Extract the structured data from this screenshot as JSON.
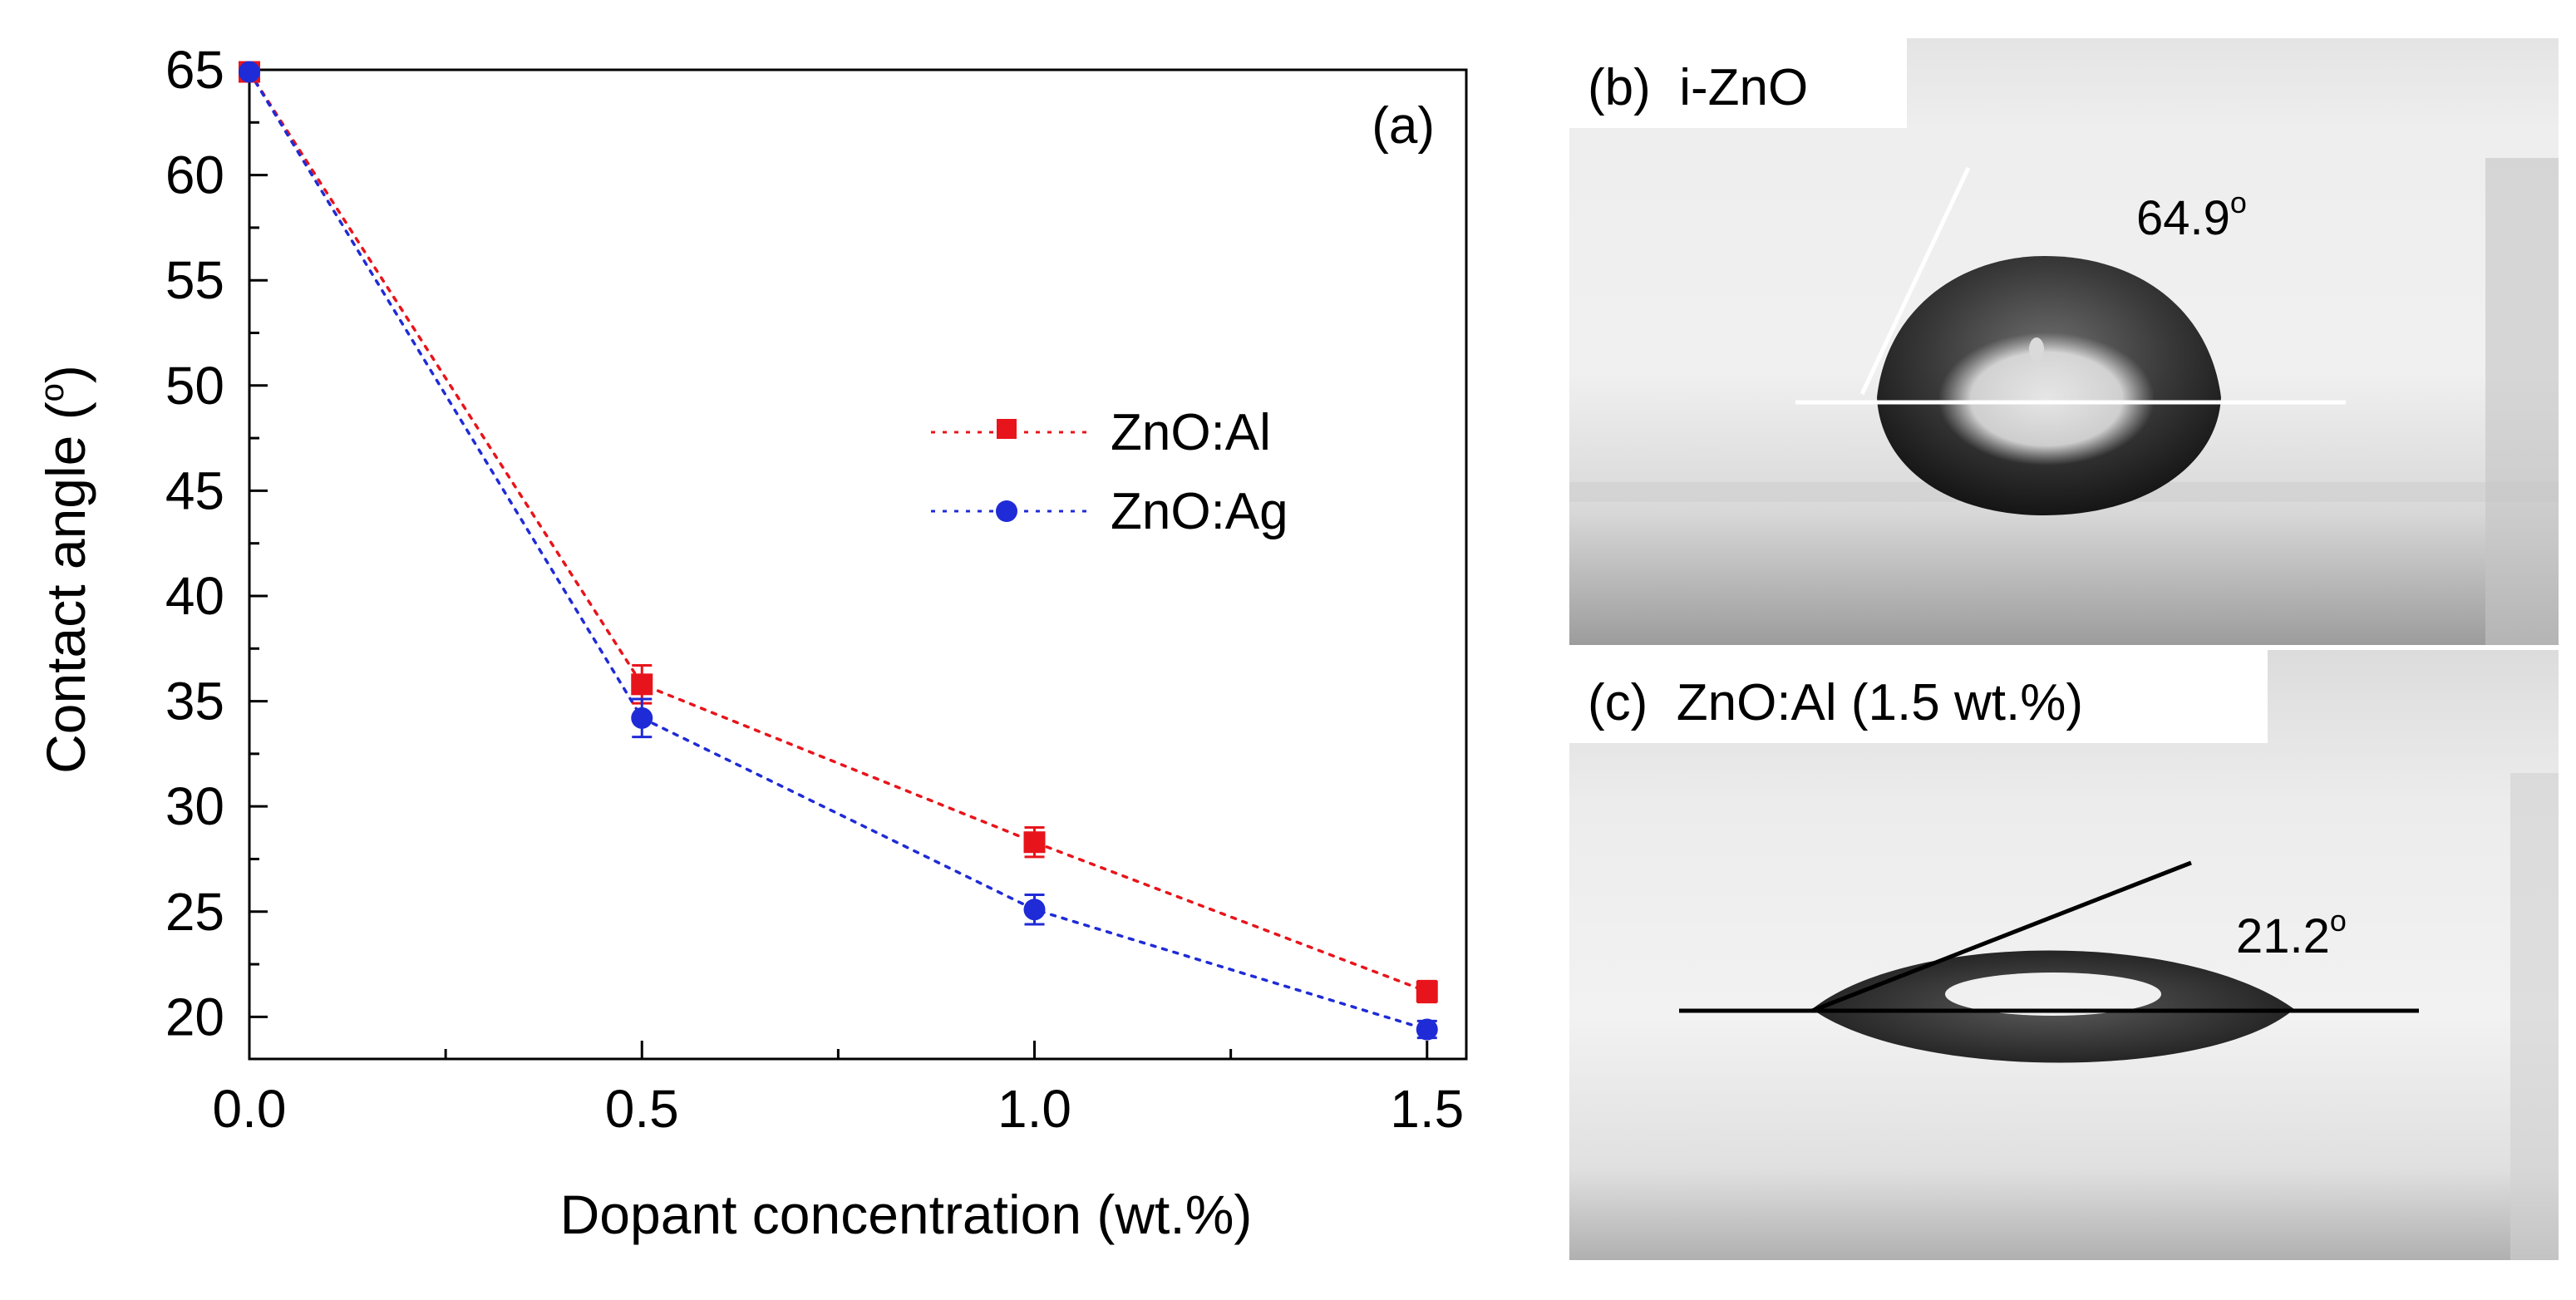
{
  "panel_b": {
    "label": "(b)  i-ZnO",
    "angle_text": "64.9",
    "angle_sup": "o"
  },
  "panel_c": {
    "label": "(c)  ZnO:Al (1.5 wt.%)",
    "angle_text": "21.2",
    "angle_sup": "o"
  },
  "colors": {
    "al": "#e8141b",
    "ag": "#1f2bd6",
    "axis": "#000000"
  },
  "chart_data": {
    "type": "scatter",
    "panel_label": "(a)",
    "xlabel": "Dopant concentration (wt.%)",
    "ylabel": "Contact angle  (",
    "ylabel_sup": "o",
    "ylabel_close": ")",
    "xlim": [
      0.0,
      1.55
    ],
    "ylim": [
      18.0,
      65.0
    ],
    "x_ticks": [
      0.0,
      0.5,
      1.0,
      1.5
    ],
    "x_tick_labels": [
      "0.0",
      "0.5",
      "1.0",
      "1.5"
    ],
    "y_ticks": [
      20,
      25,
      30,
      35,
      40,
      45,
      50,
      55,
      60,
      65
    ],
    "y_tick_labels": [
      "20",
      "25",
      "30",
      "35",
      "40",
      "45",
      "50",
      "55",
      "60",
      "65"
    ],
    "legend_position": "center-right",
    "series": [
      {
        "name": "ZnO:Al",
        "marker": "square",
        "line": "dotted",
        "x": [
          0.0,
          0.5,
          1.0,
          1.5
        ],
        "y": [
          64.9,
          35.8,
          28.3,
          21.2
        ],
        "err": [
          0,
          0.9,
          0.7,
          0.5
        ]
      },
      {
        "name": "ZnO:Ag",
        "marker": "circle",
        "line": "dotted",
        "x": [
          0.0,
          0.5,
          1.0,
          1.5
        ],
        "y": [
          64.9,
          34.2,
          25.1,
          19.4
        ],
        "err": [
          0,
          0.9,
          0.7,
          0.4
        ]
      }
    ]
  }
}
